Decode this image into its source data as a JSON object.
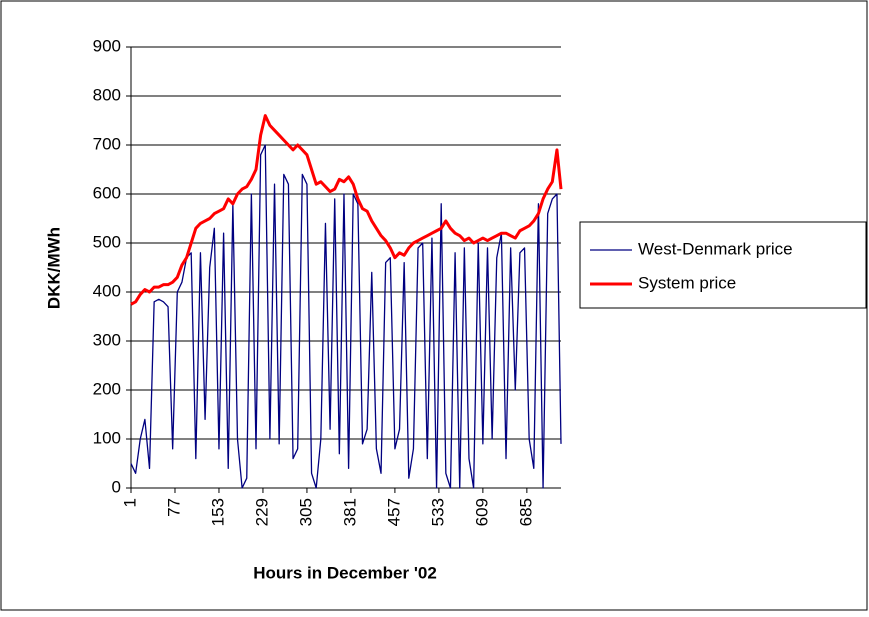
{
  "chart_data": {
    "type": "line",
    "x_label": "Hours in December '02",
    "y_label": "DKK/MWh",
    "x": [
      1,
      9,
      17,
      25,
      33,
      41,
      49,
      57,
      65,
      73,
      81,
      89,
      97,
      105,
      113,
      121,
      129,
      137,
      145,
      153,
      161,
      169,
      177,
      185,
      193,
      201,
      209,
      217,
      225,
      233,
      241,
      249,
      257,
      265,
      273,
      281,
      289,
      297,
      305,
      313,
      321,
      329,
      337,
      345,
      353,
      361,
      369,
      377,
      385,
      393,
      401,
      409,
      417,
      425,
      433,
      441,
      449,
      457,
      465,
      473,
      481,
      489,
      497,
      505,
      513,
      521,
      529,
      537,
      545,
      553,
      561,
      569,
      577,
      585,
      593,
      601,
      609,
      617,
      625,
      633,
      641,
      649,
      657,
      665,
      673,
      681,
      689,
      697,
      705,
      713,
      721,
      729,
      737,
      744
    ],
    "series": [
      {
        "name": "West-Denmark price",
        "color": "#000080",
        "width": 1.3,
        "values": [
          50,
          30,
          100,
          140,
          40,
          380,
          385,
          380,
          370,
          80,
          400,
          420,
          470,
          480,
          60,
          480,
          140,
          450,
          530,
          80,
          520,
          40,
          580,
          100,
          0,
          20,
          600,
          80,
          680,
          700,
          100,
          620,
          90,
          640,
          620,
          60,
          80,
          640,
          620,
          30,
          0,
          100,
          540,
          120,
          590,
          70,
          600,
          40,
          600,
          580,
          90,
          120,
          440,
          80,
          30,
          460,
          470,
          80,
          120,
          460,
          20,
          80,
          490,
          500,
          60,
          510,
          0,
          580,
          30,
          0,
          480,
          0,
          490,
          60,
          0,
          500,
          90,
          490,
          100,
          470,
          520,
          60,
          490,
          200,
          480,
          490,
          100,
          40,
          580,
          0,
          560,
          590,
          600,
          90
        ]
      },
      {
        "name": "System price",
        "color": "#ff0000",
        "width": 3,
        "values": [
          375,
          380,
          395,
          405,
          400,
          410,
          410,
          415,
          415,
          420,
          430,
          455,
          470,
          500,
          530,
          540,
          545,
          550,
          560,
          565,
          570,
          590,
          580,
          600,
          610,
          615,
          630,
          650,
          720,
          760,
          740,
          730,
          720,
          710,
          700,
          690,
          700,
          690,
          680,
          650,
          620,
          625,
          615,
          605,
          610,
          630,
          625,
          635,
          620,
          590,
          570,
          565,
          545,
          530,
          515,
          505,
          490,
          470,
          480,
          475,
          490,
          500,
          505,
          510,
          515,
          520,
          525,
          530,
          545,
          530,
          520,
          515,
          505,
          510,
          500,
          505,
          510,
          505,
          510,
          515,
          520,
          520,
          515,
          510,
          525,
          530,
          535,
          545,
          560,
          590,
          610,
          625,
          690,
          610
        ]
      }
    ],
    "xlim": [
      1,
      744
    ],
    "xticks": [
      1,
      77,
      153,
      229,
      305,
      381,
      457,
      533,
      609,
      685
    ],
    "ylim": [
      0,
      900
    ],
    "yticks": [
      0,
      100,
      200,
      300,
      400,
      500,
      600,
      700,
      800,
      900
    ],
    "grid": true,
    "legend": "right"
  }
}
